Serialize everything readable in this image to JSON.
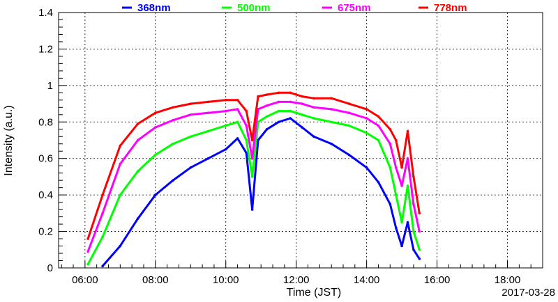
{
  "chart_data": {
    "type": "line",
    "xlabel": "Time (JST)",
    "ylabel": "Intensity (a.u.)",
    "date": "2017-03-28",
    "xlim": [
      "05:15",
      "19:00"
    ],
    "ylim": [
      0,
      1.4
    ],
    "x_ticks": [
      "06:00",
      "08:00",
      "10:00",
      "12:00",
      "14:00",
      "16:00",
      "18:00"
    ],
    "y_ticks": [
      "0",
      "0.2",
      "0.4",
      "0.6",
      "0.8",
      "1",
      "1.2",
      "1.4"
    ],
    "grid": true,
    "legend_position": "top",
    "x": [
      "06:05",
      "06:30",
      "07:00",
      "07:30",
      "08:00",
      "08:30",
      "09:00",
      "09:30",
      "10:00",
      "10:20",
      "10:35",
      "10:45",
      "10:55",
      "11:10",
      "11:30",
      "11:50",
      "12:10",
      "12:30",
      "13:00",
      "13:30",
      "14:00",
      "14:20",
      "14:40",
      "14:50",
      "15:00",
      "15:10",
      "15:20",
      "15:30"
    ],
    "series": [
      {
        "name": "368nm",
        "color": "#0000ff",
        "values": [
          null,
          0.01,
          0.12,
          0.27,
          0.4,
          0.48,
          0.55,
          0.6,
          0.65,
          0.71,
          0.63,
          0.32,
          0.7,
          0.76,
          0.8,
          0.82,
          0.77,
          0.72,
          0.68,
          0.62,
          0.55,
          0.47,
          0.35,
          0.22,
          0.12,
          0.25,
          0.1,
          0.05
        ]
      },
      {
        "name": "500nm",
        "color": "#00ff00",
        "values": [
          0.02,
          0.17,
          0.4,
          0.53,
          0.62,
          0.68,
          0.72,
          0.75,
          0.78,
          0.8,
          0.7,
          0.5,
          0.8,
          0.83,
          0.86,
          0.86,
          0.84,
          0.82,
          0.8,
          0.78,
          0.74,
          0.7,
          0.55,
          0.4,
          0.25,
          0.45,
          0.2,
          0.1
        ]
      },
      {
        "name": "675nm",
        "color": "#ff00ff",
        "values": [
          0.09,
          0.3,
          0.57,
          0.7,
          0.77,
          0.81,
          0.84,
          0.85,
          0.86,
          0.87,
          0.78,
          0.6,
          0.87,
          0.89,
          0.91,
          0.91,
          0.9,
          0.88,
          0.87,
          0.85,
          0.82,
          0.78,
          0.68,
          0.55,
          0.45,
          0.6,
          0.35,
          0.2
        ]
      },
      {
        "name": "778nm",
        "color": "#ff0000",
        "values": [
          0.16,
          0.4,
          0.67,
          0.79,
          0.85,
          0.88,
          0.9,
          0.91,
          0.92,
          0.92,
          0.86,
          0.7,
          0.94,
          0.95,
          0.96,
          0.96,
          0.94,
          0.93,
          0.93,
          0.9,
          0.87,
          0.83,
          0.76,
          0.7,
          0.55,
          0.75,
          0.5,
          0.3
        ]
      }
    ]
  }
}
